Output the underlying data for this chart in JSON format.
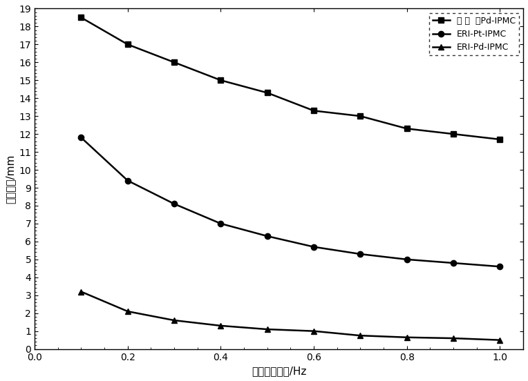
{
  "x": [
    0.1,
    0.2,
    0.3,
    0.4,
    0.5,
    0.6,
    0.7,
    0.8,
    0.9,
    1.0
  ],
  "series1_label": "自 制  高Pd-IPMC",
  "series1_y": [
    18.5,
    17.0,
    16.0,
    15.0,
    14.3,
    13.3,
    13.0,
    12.3,
    12.0,
    11.7
  ],
  "series1_marker": "s",
  "series1_linestyle": "-",
  "series2_label": "ERI-Pt-IPMC",
  "series2_y": [
    11.8,
    9.4,
    8.1,
    7.0,
    6.3,
    5.7,
    5.3,
    5.0,
    4.8,
    4.6
  ],
  "series2_marker": "o",
  "series2_linestyle": "-",
  "series3_label": "ERI-Pd-IPMC",
  "series3_y": [
    3.2,
    2.1,
    1.6,
    1.3,
    1.1,
    1.0,
    0.75,
    0.65,
    0.6,
    0.5
  ],
  "series3_marker": "^",
  "series3_linestyle": "-",
  "xlabel": "驱动电压频率/Hz",
  "ylabel": "末端位移/mm",
  "xlim": [
    0.0,
    1.05
  ],
  "ylim": [
    0,
    19
  ],
  "xticks": [
    0.0,
    0.2,
    0.4,
    0.6,
    0.8,
    1.0
  ],
  "yticks": [
    0,
    1,
    2,
    3,
    4,
    5,
    6,
    7,
    8,
    9,
    10,
    11,
    12,
    13,
    14,
    15,
    16,
    17,
    18,
    19
  ],
  "color": "#000000",
  "linewidth": 1.8,
  "markersize": 6,
  "markerfacecolor": "#000000",
  "legend_fontsize": 9,
  "axis_fontsize": 11,
  "tick_fontsize": 10,
  "figsize": [
    7.64,
    5.52
  ],
  "dpi": 100
}
